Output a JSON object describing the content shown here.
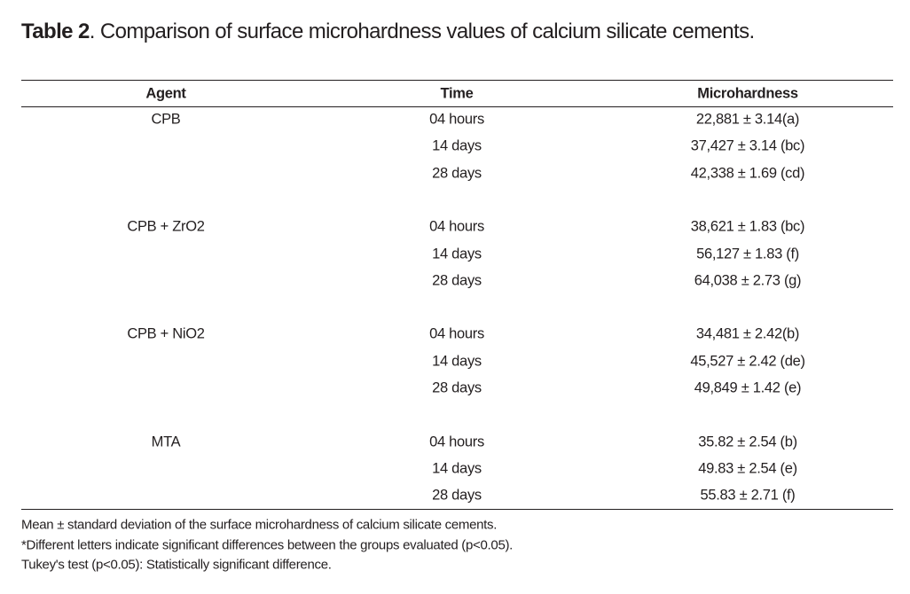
{
  "title": {
    "label": "Table 2",
    "text": ". Comparison of surface microhardness values of calcium silicate cements."
  },
  "table": {
    "headers": [
      "Agent",
      "Time",
      "Microhardness"
    ],
    "groups": [
      {
        "agent": "CPB",
        "rows": [
          [
            "04 hours",
            "22,881 ± 3.14(a)"
          ],
          [
            "14 days",
            "37,427 ± 3.14 (bc)"
          ],
          [
            "28 days",
            "42,338 ± 1.69 (cd)"
          ]
        ]
      },
      {
        "agent": "CPB + ZrO2",
        "rows": [
          [
            "04 hours",
            "38,621 ± 1.83 (bc)"
          ],
          [
            "14 days",
            "56,127 ± 1.83 (f)"
          ],
          [
            "28 days",
            "64,038 ± 2.73 (g)"
          ]
        ]
      },
      {
        "agent": "CPB + NiO2",
        "rows": [
          [
            "04 hours",
            "34,481 ± 2.42(b)"
          ],
          [
            "14 days",
            "45,527 ± 2.42 (de)"
          ],
          [
            "28 days",
            "49,849 ± 1.42 (e)"
          ]
        ]
      },
      {
        "agent": "MTA",
        "rows": [
          [
            "04 hours",
            "35.82 ± 2.54 (b)"
          ],
          [
            "14 days",
            "49.83 ± 2.54 (e)"
          ],
          [
            "28 days",
            "55.83 ± 2.71 (f)"
          ]
        ]
      }
    ]
  },
  "notes": [
    "Mean ± standard deviation of the surface microhardness of calcium silicate cements.",
    "*Different letters indicate significant differences between the groups evaluated (p<0.05).",
    "Tukey's test (p<0.05): Statistically significant difference."
  ]
}
